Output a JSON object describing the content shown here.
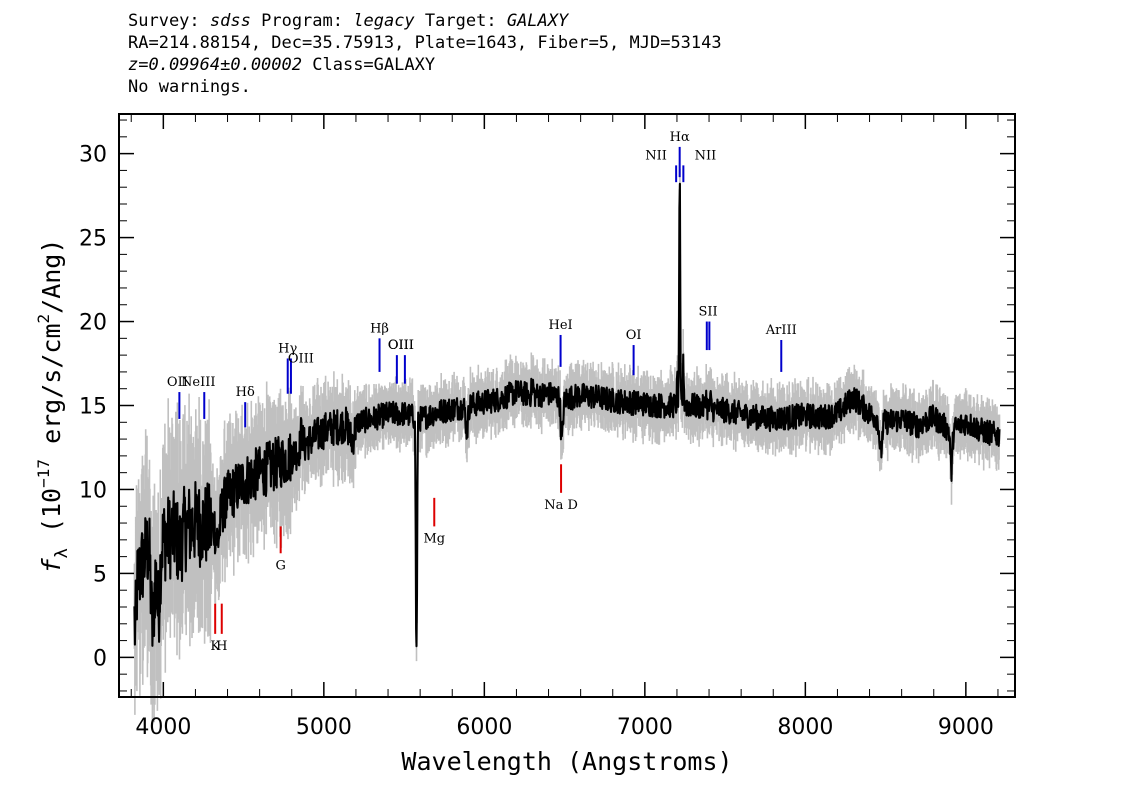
{
  "header": {
    "survey_key": "Survey:",
    "survey": "sdss",
    "program_key": "Program:",
    "program": "legacy",
    "target_key": "Target:",
    "target": "GALAXY",
    "coords": "RA=214.88154, Dec=35.75913, Plate=1643, Fiber=5, MJD=53143",
    "redshift": "z=0.09964±0.00002",
    "class": "Class=GALAXY",
    "warnings": "No warnings."
  },
  "chart_data": {
    "type": "line",
    "xlabel": "Wavelength (Angstroms)",
    "ylabel": "f_λ (10^-17 erg/s/cm^2/Ang)",
    "ylabel_prefix": "f",
    "ylabel_sub": "λ",
    "ylabel_mid": " (10",
    "ylabel_exp": "−17",
    "ylabel_mid2": " erg/s/cm",
    "ylabel_exp2": "2",
    "ylabel_end": "/Ang)",
    "xlim": [
      3730,
      9300
    ],
    "ylim": [
      -2.3,
      32.3
    ],
    "xticks": [
      4000,
      5000,
      6000,
      7000,
      8000,
      9000
    ],
    "yticks": [
      0,
      5,
      10,
      15,
      20,
      25,
      30
    ],
    "grid": false,
    "series": [
      {
        "role": "flux",
        "color": "#000000",
        "anchors": [
          [
            3820,
            4.0
          ],
          [
            3900,
            6.5
          ],
          [
            4000,
            7.0
          ],
          [
            4100,
            7.5
          ],
          [
            4200,
            8.0
          ],
          [
            4300,
            7.8
          ],
          [
            4400,
            9.5
          ],
          [
            4500,
            10.5
          ],
          [
            4600,
            11.0
          ],
          [
            4700,
            11.5
          ],
          [
            4800,
            12.0
          ],
          [
            4900,
            12.8
          ],
          [
            5000,
            13.5
          ],
          [
            5100,
            13.8
          ],
          [
            5200,
            14.0
          ],
          [
            5300,
            14.2
          ],
          [
            5400,
            14.5
          ],
          [
            5500,
            14.5
          ],
          [
            5600,
            14.2
          ],
          [
            5700,
            14.6
          ],
          [
            5800,
            14.8
          ],
          [
            5900,
            15.0
          ],
          [
            6000,
            15.2
          ],
          [
            6100,
            15.4
          ],
          [
            6200,
            15.8
          ],
          [
            6300,
            15.6
          ],
          [
            6400,
            15.7
          ],
          [
            6500,
            15.4
          ],
          [
            6600,
            15.6
          ],
          [
            6700,
            15.5
          ],
          [
            6800,
            15.3
          ],
          [
            6900,
            15.2
          ],
          [
            7000,
            15.1
          ],
          [
            7100,
            15.0
          ],
          [
            7200,
            15.0
          ],
          [
            7300,
            15.0
          ],
          [
            7400,
            14.8
          ],
          [
            7500,
            14.7
          ],
          [
            7600,
            14.5
          ],
          [
            7700,
            14.3
          ],
          [
            7800,
            14.2
          ],
          [
            7900,
            14.3
          ],
          [
            8000,
            14.4
          ],
          [
            8100,
            14.3
          ],
          [
            8200,
            14.5
          ],
          [
            8300,
            15.5
          ],
          [
            8400,
            14.5
          ],
          [
            8500,
            14.0
          ],
          [
            8600,
            14.2
          ],
          [
            8700,
            13.8
          ],
          [
            8800,
            14.3
          ],
          [
            8900,
            13.5
          ],
          [
            9000,
            14.0
          ],
          [
            9100,
            13.5
          ],
          [
            9210,
            13.2
          ]
        ],
        "features": [
          [
            3825,
            -2.5,
            6
          ],
          [
            3933,
            -5.0,
            10
          ],
          [
            3968,
            -4.0,
            10
          ],
          [
            4102,
            -1.0,
            12
          ],
          [
            4340,
            -1.5,
            12
          ],
          [
            4861,
            1.0,
            6
          ],
          [
            5175,
            -1.0,
            15
          ],
          [
            5577,
            -14.0,
            4
          ],
          [
            5891,
            -1.5,
            7
          ],
          [
            6300,
            0.8,
            5
          ],
          [
            6483,
            -2.5,
            7
          ],
          [
            7203,
            1.5,
            3
          ],
          [
            7217,
            13.5,
            3
          ],
          [
            7240,
            2.5,
            3
          ],
          [
            7380,
            0.8,
            4
          ],
          [
            7410,
            0.5,
            4
          ],
          [
            8470,
            -2.0,
            8
          ],
          [
            8910,
            -2.5,
            6
          ]
        ]
      },
      {
        "role": "error band",
        "color": "#c0c0c0"
      }
    ],
    "emission_lines": [
      {
        "label": "OII",
        "x": 4100,
        "y_top": 15.8,
        "y_bottom": 14.2
      },
      {
        "label": "NeIII",
        "x": 4255,
        "y_top": 15.8,
        "y_bottom": 14.2
      },
      {
        "label": "Hδ",
        "x": 4510,
        "y_top": 15.2,
        "y_bottom": 13.7
      },
      {
        "label": "Hγ",
        "x": 4775,
        "y_top": 17.8,
        "y_bottom": 15.7
      },
      {
        "label": "OIII",
        "x": 4795,
        "y_top": 17.8,
        "y_bottom": 15.7
      },
      {
        "label": "Hβ",
        "x": 5347,
        "y_top": 19.0,
        "y_bottom": 17.0
      },
      {
        "label": "OIII",
        "x": 5455,
        "y_top": 18.0,
        "y_bottom": 16.3
      },
      {
        "label": "OIII",
        "x": 5505,
        "y_top": 18.0,
        "y_bottom": 16.3
      },
      {
        "label": "HeI",
        "x": 6475,
        "y_top": 19.2,
        "y_bottom": 17.3
      },
      {
        "label": "OI",
        "x": 6930,
        "y_top": 18.6,
        "y_bottom": 16.8
      },
      {
        "label": "NII",
        "x": 7195,
        "y_top": 29.3,
        "y_bottom": 28.3
      },
      {
        "label": "Hα",
        "x": 7217,
        "y_top": 30.4,
        "y_bottom": 28.6
      },
      {
        "label": "NII",
        "x": 7240,
        "y_top": 29.3,
        "y_bottom": 28.3
      },
      {
        "label": "SII",
        "x": 7386,
        "y_top": 20.0,
        "y_bottom": 18.3
      },
      {
        "label": "SII",
        "x": 7402,
        "y_top": 20.0,
        "y_bottom": 18.3
      },
      {
        "label": "ArIII",
        "x": 7850,
        "y_top": 18.9,
        "y_bottom": 17.0
      }
    ],
    "absorption_lines": [
      {
        "label": "K",
        "x": 4323,
        "y_top": 3.2,
        "y_bottom": 1.4
      },
      {
        "label": "H",
        "x": 4364,
        "y_top": 3.2,
        "y_bottom": 1.4
      },
      {
        "label": "G",
        "x": 4731,
        "y_top": 7.8,
        "y_bottom": 6.2
      },
      {
        "label": "Mg",
        "x": 5688,
        "y_top": 9.5,
        "y_bottom": 7.8
      },
      {
        "label": "Na D",
        "x": 6478,
        "y_top": 11.5,
        "y_bottom": 9.8
      }
    ],
    "line_colors": {
      "emission": "#0000cc",
      "absorption": "#dd0000"
    }
  }
}
